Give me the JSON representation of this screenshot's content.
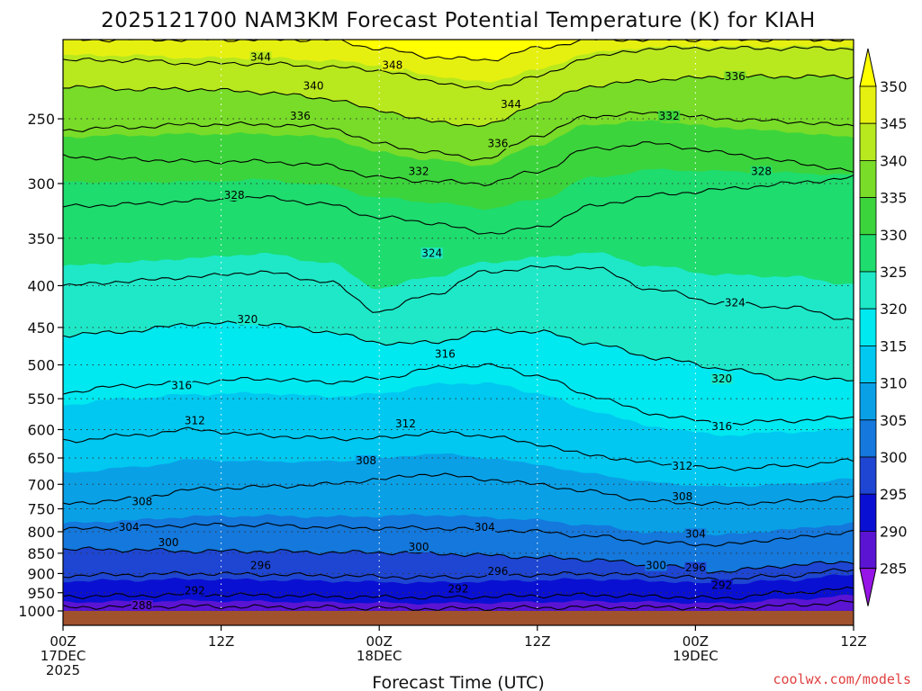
{
  "chart_data": {
    "type": "contour",
    "title": "2025121700 NAM3KM Forecast Potential Temperature (K) for KIAH",
    "xlabel": "Forecast Time (UTC)",
    "ylabel": "",
    "y_axis": {
      "scale": "log",
      "inverted": true,
      "range": [
        1000,
        200
      ],
      "ticks": [
        250,
        300,
        350,
        400,
        450,
        500,
        550,
        600,
        650,
        700,
        750,
        800,
        850,
        900,
        950,
        1000
      ]
    },
    "x_axis": {
      "range_hours": [
        0,
        60
      ],
      "ticks": [
        {
          "hour": 0,
          "line1": "00Z",
          "line2": "17DEC",
          "line3": "2025"
        },
        {
          "hour": 12,
          "line1": "12Z",
          "line2": "",
          "line3": ""
        },
        {
          "hour": 24,
          "line1": "00Z",
          "line2": "18DEC",
          "line3": ""
        },
        {
          "hour": 36,
          "line1": "12Z",
          "line2": "",
          "line3": ""
        },
        {
          "hour": 48,
          "line1": "00Z",
          "line2": "19DEC",
          "line3": ""
        },
        {
          "hour": 60,
          "line1": "12Z",
          "line2": "",
          "line3": ""
        }
      ]
    },
    "colorbar": {
      "levels": [
        350,
        345,
        340,
        335,
        330,
        325,
        320,
        315,
        310,
        305,
        300,
        295,
        290,
        285
      ],
      "colors": [
        "#ffff00",
        "#e6f010",
        "#b8e81e",
        "#78dc28",
        "#3cd43c",
        "#1edc6e",
        "#1ee8c8",
        "#00e8f0",
        "#00c8f0",
        "#0aa0e6",
        "#1478dc",
        "#1e46d2",
        "#0a10d2",
        "#5a14d2",
        "#9614e6"
      ]
    },
    "grid": true,
    "contour_interval": 4,
    "isentropes": [
      {
        "theta": 288,
        "p": [
          990,
          988,
          987,
          989,
          990,
          992,
          994,
          993,
          991,
          989,
          990,
          992,
          985,
          975
        ]
      },
      {
        "theta": 292,
        "p": [
          960,
          958,
          955,
          957,
          960,
          962,
          963,
          961,
          958,
          956,
          960,
          965,
          950,
          940
        ]
      },
      {
        "theta": 296,
        "p": [
          905,
          903,
          900,
          902,
          905,
          908,
          910,
          906,
          903,
          900,
          905,
          915,
          905,
          890
        ]
      },
      {
        "theta": 300,
        "p": [
          840,
          842,
          845,
          845,
          848,
          848,
          850,
          855,
          860,
          865,
          880,
          895,
          880,
          870
        ]
      },
      {
        "theta": 304,
        "p": [
          795,
          790,
          785,
          785,
          790,
          792,
          792,
          795,
          800,
          810,
          825,
          830,
          815,
          800
        ]
      },
      {
        "theta": 308,
        "p": [
          740,
          730,
          710,
          705,
          700,
          690,
          680,
          690,
          700,
          715,
          735,
          740,
          735,
          725
        ]
      },
      {
        "theta": 312,
        "p": [
          620,
          610,
          600,
          610,
          615,
          615,
          605,
          610,
          625,
          645,
          660,
          670,
          665,
          655
        ]
      },
      {
        "theta": 316,
        "p": [
          540,
          530,
          525,
          520,
          525,
          520,
          505,
          500,
          515,
          545,
          575,
          590,
          585,
          580
        ]
      },
      {
        "theta": 320,
        "p": [
          460,
          455,
          445,
          445,
          455,
          470,
          470,
          455,
          455,
          470,
          490,
          505,
          520,
          520
        ]
      },
      {
        "theta": 324,
        "p": [
          400,
          395,
          390,
          385,
          395,
          430,
          410,
          385,
          380,
          380,
          405,
          420,
          425,
          440
        ]
      },
      {
        "theta": 328,
        "p": [
          320,
          318,
          315,
          312,
          318,
          330,
          335,
          345,
          340,
          320,
          310,
          305,
          300,
          295
        ]
      },
      {
        "theta": 332,
        "p": [
          278,
          280,
          282,
          282,
          285,
          295,
          298,
          300,
          290,
          272,
          268,
          275,
          282,
          290
        ]
      },
      {
        "theta": 336,
        "p": [
          258,
          256,
          254,
          254,
          256,
          268,
          275,
          280,
          262,
          248,
          246,
          250,
          252,
          255
        ]
      },
      {
        "theta": 340,
        "p": [
          228,
          230,
          230,
          232,
          236,
          244,
          252,
          255,
          240,
          228,
          224,
          222,
          222,
          222
        ]
      },
      {
        "theta": 344,
        "p": [
          212,
          212,
          214,
          214,
          216,
          218,
          225,
          230,
          222,
          210,
          205,
          205,
          205,
          205
        ]
      },
      {
        "theta": 348,
        "p": [
          200,
          200,
          200,
          200,
          200,
          205,
          210,
          212,
          205,
          200,
          200,
          200,
          200,
          200
        ]
      }
    ],
    "isentrope_hours": [
      0,
      5,
      10,
      15,
      20,
      24,
      28,
      32,
      36,
      40,
      45,
      50,
      55,
      60
    ],
    "contour_labels": [
      {
        "text": "344",
        "hour": 15,
        "p": 210
      },
      {
        "text": "348",
        "hour": 25,
        "p": 215
      },
      {
        "text": "340",
        "hour": 19,
        "p": 228
      },
      {
        "text": "336",
        "hour": 18,
        "p": 248
      },
      {
        "text": "344",
        "hour": 34,
        "p": 240
      },
      {
        "text": "336",
        "hour": 33,
        "p": 268
      },
      {
        "text": "332",
        "hour": 27,
        "p": 290
      },
      {
        "text": "336",
        "hour": 51,
        "p": 222
      },
      {
        "text": "332",
        "hour": 46,
        "p": 248
      },
      {
        "text": "328",
        "hour": 13,
        "p": 310
      },
      {
        "text": "328",
        "hour": 53,
        "p": 290
      },
      {
        "text": "324",
        "hour": 28,
        "p": 365
      },
      {
        "text": "324",
        "hour": 51,
        "p": 420
      },
      {
        "text": "320",
        "hour": 14,
        "p": 440
      },
      {
        "text": "316",
        "hour": 29,
        "p": 485
      },
      {
        "text": "320",
        "hour": 50,
        "p": 520
      },
      {
        "text": "316",
        "hour": 9,
        "p": 530
      },
      {
        "text": "312",
        "hour": 10,
        "p": 585
      },
      {
        "text": "312",
        "hour": 26,
        "p": 590
      },
      {
        "text": "316",
        "hour": 50,
        "p": 595
      },
      {
        "text": "308",
        "hour": 23,
        "p": 655
      },
      {
        "text": "312",
        "hour": 47,
        "p": 665
      },
      {
        "text": "308",
        "hour": 6,
        "p": 735
      },
      {
        "text": "308",
        "hour": 47,
        "p": 725
      },
      {
        "text": "304",
        "hour": 5,
        "p": 790
      },
      {
        "text": "304",
        "hour": 32,
        "p": 790
      },
      {
        "text": "304",
        "hour": 48,
        "p": 805
      },
      {
        "text": "300",
        "hour": 8,
        "p": 825
      },
      {
        "text": "300",
        "hour": 27,
        "p": 835
      },
      {
        "text": "300",
        "hour": 45,
        "p": 880
      },
      {
        "text": "296",
        "hour": 15,
        "p": 880
      },
      {
        "text": "296",
        "hour": 33,
        "p": 895
      },
      {
        "text": "296",
        "hour": 48,
        "p": 885
      },
      {
        "text": "292",
        "hour": 10,
        "p": 945
      },
      {
        "text": "292",
        "hour": 30,
        "p": 940
      },
      {
        "text": "292",
        "hour": 50,
        "p": 930
      },
      {
        "text": "288",
        "hour": 6,
        "p": 985
      }
    ]
  },
  "credit": "coolwx.com/models"
}
